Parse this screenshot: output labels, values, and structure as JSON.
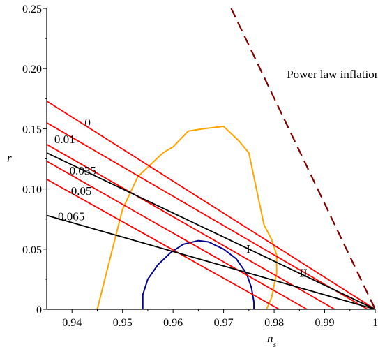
{
  "chart_data": {
    "type": "line",
    "xlabel": "n_s",
    "xlabel_main": "n",
    "xlabel_sub": "s",
    "ylabel": "r",
    "xlim": [
      0.935,
      1.0
    ],
    "ylim": [
      0,
      0.25
    ],
    "x_ticks": [
      0.94,
      0.95,
      0.96,
      0.97,
      0.98,
      0.99,
      1
    ],
    "x_tick_labels": [
      "0.94",
      "0.95",
      "0.96",
      "0.97",
      "0.98",
      "0.99",
      "1"
    ],
    "y_ticks": [
      0,
      0.05,
      0.1,
      0.15,
      0.2,
      0.25
    ],
    "y_tick_labels": [
      "0",
      "0.05",
      "0.10",
      "0.15",
      "0.20",
      "0.25"
    ],
    "grid": false,
    "colors": {
      "red": "#ff0000",
      "black": "#000000",
      "orange": "#ffa500",
      "navy": "#00008b",
      "maroon": "#800000"
    },
    "red_lines": [
      {
        "label": "0",
        "points": [
          [
            0.935,
            0.173
          ],
          [
            1.0,
            0.0
          ]
        ]
      },
      {
        "label": "0.01",
        "points": [
          [
            0.935,
            0.155
          ],
          [
            0.9985,
            0.0
          ]
        ]
      },
      {
        "label": "0.035",
        "points": [
          [
            0.935,
            0.137
          ],
          [
            0.992,
            0.0
          ]
        ]
      },
      {
        "label": "0.05",
        "points": [
          [
            0.935,
            0.123
          ],
          [
            0.9865,
            0.0
          ]
        ]
      },
      {
        "label": "0.065",
        "points": [
          [
            0.935,
            0.108
          ],
          [
            0.981,
            0.0
          ]
        ]
      }
    ],
    "black_lines": [
      {
        "label": "I",
        "points": [
          [
            0.935,
            0.13
          ],
          [
            1.0,
            0.0
          ]
        ]
      },
      {
        "label": "II",
        "points": [
          [
            0.935,
            0.078
          ],
          [
            1.0,
            0.0
          ]
        ]
      }
    ],
    "power_law": {
      "label": "Power law inflation",
      "points": [
        [
          0.9715,
          0.25
        ],
        [
          1.0,
          0.0
        ]
      ]
    },
    "orange_contour": [
      [
        0.945,
        0.0
      ],
      [
        0.9465,
        0.025
      ],
      [
        0.948,
        0.05
      ],
      [
        0.95,
        0.083
      ],
      [
        0.953,
        0.11
      ],
      [
        0.9555,
        0.12
      ],
      [
        0.958,
        0.13
      ],
      [
        0.96,
        0.135
      ],
      [
        0.963,
        0.148
      ],
      [
        0.966,
        0.15
      ],
      [
        0.97,
        0.152
      ],
      [
        0.973,
        0.14
      ],
      [
        0.975,
        0.13
      ],
      [
        0.976,
        0.11
      ],
      [
        0.977,
        0.09
      ],
      [
        0.978,
        0.07
      ],
      [
        0.9795,
        0.058
      ],
      [
        0.9805,
        0.045
      ],
      [
        0.9805,
        0.03
      ],
      [
        0.9795,
        0.01
      ],
      [
        0.9785,
        0.0
      ]
    ],
    "navy_contour": [
      [
        0.954,
        0.0
      ],
      [
        0.954,
        0.012
      ],
      [
        0.955,
        0.025
      ],
      [
        0.957,
        0.037
      ],
      [
        0.9595,
        0.047
      ],
      [
        0.962,
        0.054
      ],
      [
        0.965,
        0.057
      ],
      [
        0.967,
        0.056
      ],
      [
        0.97,
        0.05
      ],
      [
        0.9725,
        0.042
      ],
      [
        0.9745,
        0.03
      ],
      [
        0.9755,
        0.018
      ],
      [
        0.976,
        0.006
      ],
      [
        0.976,
        0.0
      ]
    ],
    "annotations": [
      {
        "text": "0",
        "x": 0.9425,
        "y": 0.152
      },
      {
        "text": "0.01",
        "x": 0.9365,
        "y": 0.138
      },
      {
        "text": "0.035",
        "x": 0.9395,
        "y": 0.112
      },
      {
        "text": "0.05",
        "x": 0.9398,
        "y": 0.095
      },
      {
        "text": "0.065",
        "x": 0.9372,
        "y": 0.074
      },
      {
        "text": "I",
        "x": 0.9745,
        "y": 0.047
      },
      {
        "text": "II",
        "x": 0.985,
        "y": 0.027
      },
      {
        "text": "Power law inflation",
        "x": 0.9825,
        "y": 0.192
      }
    ]
  }
}
